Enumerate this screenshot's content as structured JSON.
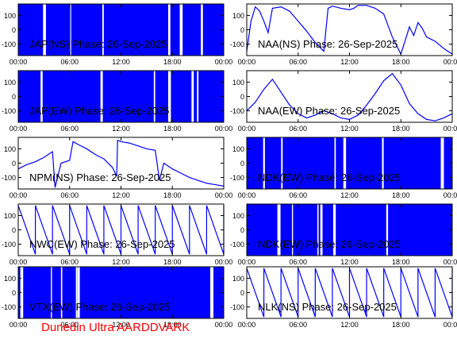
{
  "figure": {
    "footer": "Dunedin Ultra AARDDVARK",
    "trace_color": "#0000ff",
    "footer_color": "#ff0000"
  },
  "chart_data": [
    {
      "type": "line",
      "title": "JAP(NS) Phase: 26-Sep-2025",
      "ylabel": "",
      "xlabel": "",
      "ylim": [
        -180,
        180
      ],
      "yticks": [
        "100",
        "0",
        "-100"
      ],
      "xticks": [
        "00:00",
        "06:00",
        "12:00",
        "18:00",
        "00:00"
      ],
      "grid": false,
      "legend": "none",
      "pattern": "noise",
      "x": [
        0,
        24
      ],
      "y": [
        -180,
        180
      ]
    },
    {
      "type": "line",
      "title": "NAA(NS) Phase: 26-Sep-2025",
      "ylabel": "",
      "xlabel": "",
      "ylim": [
        -180,
        180
      ],
      "yticks": [
        "100",
        "0",
        "-100"
      ],
      "xticks": [
        "00:00",
        "06:00",
        "12:00",
        "18:00",
        "00:00"
      ],
      "grid": false,
      "legend": "none",
      "pattern": "trace",
      "x": [
        0,
        0.5,
        1,
        1.5,
        2,
        2.5,
        3,
        4,
        5,
        6,
        7,
        8,
        9,
        9.5,
        10,
        11,
        12,
        12.5,
        13,
        14,
        15,
        16,
        17,
        18,
        19,
        19.5,
        20,
        20.5,
        21,
        22,
        23,
        24
      ],
      "y": [
        -150,
        60,
        160,
        130,
        60,
        -20,
        150,
        160,
        130,
        60,
        -10,
        -90,
        -150,
        150,
        165,
        150,
        140,
        150,
        170,
        170,
        150,
        110,
        -50,
        -170,
        20,
        -40,
        50,
        10,
        -50,
        -80,
        -130,
        -170
      ]
    },
    {
      "type": "line",
      "title": "JAP(EW) Phase: 26-Sep-2025",
      "ylabel": "",
      "xlabel": "",
      "ylim": [
        -180,
        180
      ],
      "yticks": [
        "100",
        "0",
        "-100"
      ],
      "xticks": [
        "00:00",
        "06:00",
        "12:00",
        "18:00",
        "00:00"
      ],
      "grid": false,
      "legend": "none",
      "pattern": "noise",
      "x": [
        0,
        24
      ],
      "y": [
        -180,
        180
      ]
    },
    {
      "type": "line",
      "title": "NAA(EW) Phase: 26-Sep-2025",
      "ylabel": "",
      "xlabel": "",
      "ylim": [
        -180,
        180
      ],
      "yticks": [
        "100",
        "0",
        "-100"
      ],
      "xticks": [
        "00:00",
        "06:00",
        "12:00",
        "18:00",
        "00:00"
      ],
      "grid": false,
      "legend": "none",
      "pattern": "trace",
      "x": [
        0,
        1,
        2,
        3,
        4,
        5,
        6,
        7,
        8,
        9,
        10,
        11,
        12,
        13,
        14,
        15,
        16,
        17,
        18,
        19,
        20,
        21,
        22,
        23,
        24
      ],
      "y": [
        -100,
        -40,
        50,
        120,
        30,
        -60,
        -120,
        -150,
        -130,
        -100,
        -120,
        -150,
        -160,
        -130,
        -60,
        20,
        110,
        160,
        80,
        -50,
        -120,
        -160,
        -170,
        -150,
        -120
      ]
    },
    {
      "type": "line",
      "title": "NPM(NS) Phase: 26-Sep-2025",
      "ylabel": "",
      "xlabel": "",
      "ylim": [
        -180,
        180
      ],
      "yticks": [
        "100",
        "0",
        "-100"
      ],
      "xticks": [
        "00:00",
        "06:00",
        "12:00",
        "18:00",
        "00:00"
      ],
      "grid": false,
      "legend": "none",
      "pattern": "trace",
      "x": [
        0,
        1,
        2,
        3,
        4,
        4.3,
        5,
        6,
        6.4,
        7,
        8,
        9,
        10,
        11,
        11.5,
        11.6,
        12,
        13,
        14,
        15,
        16,
        16.5,
        17,
        18,
        19,
        20,
        21,
        22,
        23,
        24
      ],
      "y": [
        -40,
        -10,
        10,
        40,
        80,
        -170,
        0,
        20,
        150,
        130,
        100,
        60,
        30,
        -30,
        -90,
        160,
        150,
        140,
        120,
        100,
        90,
        -120,
        0,
        -40,
        -70,
        -100,
        -120,
        -140,
        -150,
        -160
      ]
    },
    {
      "type": "line",
      "title": "NDK(EW) Phase: 26-Sep-2025",
      "ylabel": "",
      "xlabel": "",
      "ylim": [
        -180,
        180
      ],
      "yticks": [
        "100",
        "0",
        "-100"
      ],
      "xticks": [
        "00:00",
        "06:00",
        "12:00",
        "18:00",
        "00:00"
      ],
      "grid": false,
      "legend": "none",
      "pattern": "noise",
      "x": [
        0,
        24
      ],
      "y": [
        -180,
        180
      ]
    },
    {
      "type": "line",
      "title": "NWC(EW) Phase: 26-Sep-2025",
      "ylabel": "",
      "xlabel": "",
      "ylim": [
        -180,
        180
      ],
      "yticks": [
        "100",
        "0",
        "-100"
      ],
      "xticks": [
        "00:00",
        "06:00",
        "12:00",
        "18:00",
        "00:00"
      ],
      "grid": false,
      "legend": "none",
      "pattern": "sawtooth",
      "x": [
        0,
        24
      ],
      "y": [
        -180,
        180
      ]
    },
    {
      "type": "line",
      "title": "NDK(EW) Phase: 26-Sep-2025",
      "ylabel": "",
      "xlabel": "",
      "ylim": [
        -180,
        180
      ],
      "yticks": [
        "100",
        "0",
        "-100"
      ],
      "xticks": [
        "00:00",
        "06:00",
        "12:00",
        "18:00",
        "00:00"
      ],
      "grid": false,
      "legend": "none",
      "pattern": "noise",
      "x": [
        0,
        24
      ],
      "y": [
        -180,
        180
      ]
    },
    {
      "type": "line",
      "title": "VTX(EW) Phase: 26-Sep-2025",
      "ylabel": "",
      "xlabel": "",
      "ylim": [
        -180,
        180
      ],
      "yticks": [
        "100",
        "0",
        "-100"
      ],
      "xticks": [
        "00:00",
        "06:00",
        "12:00",
        "18:00",
        "00:00"
      ],
      "grid": false,
      "legend": "none",
      "pattern": "noise",
      "x": [
        0,
        24
      ],
      "y": [
        -180,
        180
      ]
    },
    {
      "type": "line",
      "title": "NLK(NS) Phase: 26-Sep-2025",
      "ylabel": "",
      "xlabel": "",
      "ylim": [
        -180,
        180
      ],
      "yticks": [
        "100",
        "0",
        "-100"
      ],
      "xticks": [
        "00:00",
        "06:00",
        "12:00",
        "18:00",
        "00:00"
      ],
      "grid": false,
      "legend": "none",
      "pattern": "sawtooth",
      "x": [
        0,
        24
      ],
      "y": [
        -180,
        180
      ]
    }
  ]
}
